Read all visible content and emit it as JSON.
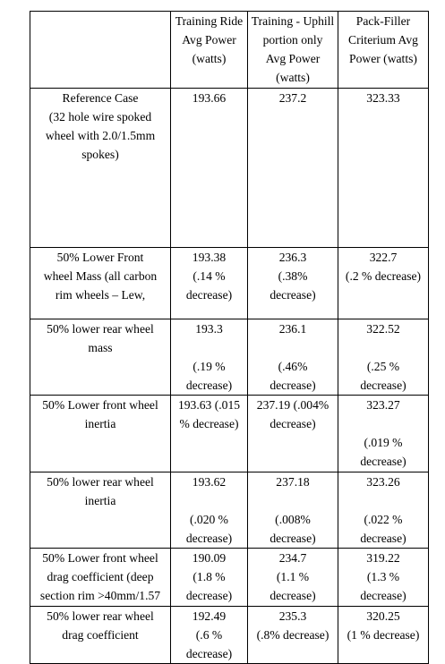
{
  "header": {
    "col0": [],
    "col1": [
      "Training Ride",
      "Avg Power",
      "(watts)"
    ],
    "col2": [
      "Training - Uphill",
      "portion only",
      "Avg Power",
      "(watts)"
    ],
    "col3": [
      "Pack-Filler",
      "Criterium Avg",
      "Power (watts)"
    ]
  },
  "rows": [
    {
      "label": [
        "Reference Case",
        "(32 hole wire spoked",
        "wheel with 2.0/1.5mm",
        "spokes)"
      ],
      "c1": [
        "193.66"
      ],
      "c2": [
        "237.2"
      ],
      "c3": [
        "323.33"
      ]
    },
    {
      "label": [
        "50% Lower Front",
        "wheel Mass (all carbon",
        "rim wheels – Lew,"
      ],
      "c1": [
        "193.38",
        "(.14 %",
        "decrease)"
      ],
      "c2": [
        "236.3",
        "(.38%",
        "decrease)"
      ],
      "c3": [
        "322.7",
        "(.2 % decrease)"
      ]
    },
    {
      "label": [
        "50% lower rear wheel",
        "mass"
      ],
      "c1": [
        "193.3",
        "",
        "(.19 %",
        "decrease)"
      ],
      "c2": [
        "236.1",
        "",
        "(.46%",
        "decrease)"
      ],
      "c3": [
        "322.52",
        "",
        "(.25 %",
        "decrease)"
      ]
    },
    {
      "label": [
        "50% Lower front wheel",
        "inertia"
      ],
      "c1": [
        "193.63 (.015",
        "% decrease)"
      ],
      "c2": [
        "237.19 (.004%",
        "decrease)"
      ],
      "c3": [
        "323.27",
        "",
        "(.019 %",
        "decrease)"
      ]
    },
    {
      "label": [
        "50% lower rear wheel",
        "inertia"
      ],
      "c1": [
        "193.62",
        "",
        "(.020 %",
        "decrease)"
      ],
      "c2": [
        "237.18",
        "",
        "(.008%",
        "decrease)"
      ],
      "c3": [
        "323.26",
        "",
        "(.022 %",
        "decrease)"
      ]
    },
    {
      "label": [
        "50% Lower front wheel",
        "drag coefficient (deep",
        "section rim >40mm/1.57"
      ],
      "c1": [
        "190.09",
        "(1.8 %",
        "decrease)"
      ],
      "c2": [
        "234.7",
        "(1.1 %",
        "decrease)"
      ],
      "c3": [
        "319.22",
        "(1.3 %",
        "decrease)"
      ]
    },
    {
      "label": [
        "50% lower rear wheel",
        "drag coefficient"
      ],
      "c1": [
        "192.49",
        "(.6 %",
        "decrease)"
      ],
      "c2": [
        "235.3",
        "(.8% decrease)"
      ],
      "c3": [
        "320.25",
        "(1 % decrease)"
      ]
    }
  ]
}
